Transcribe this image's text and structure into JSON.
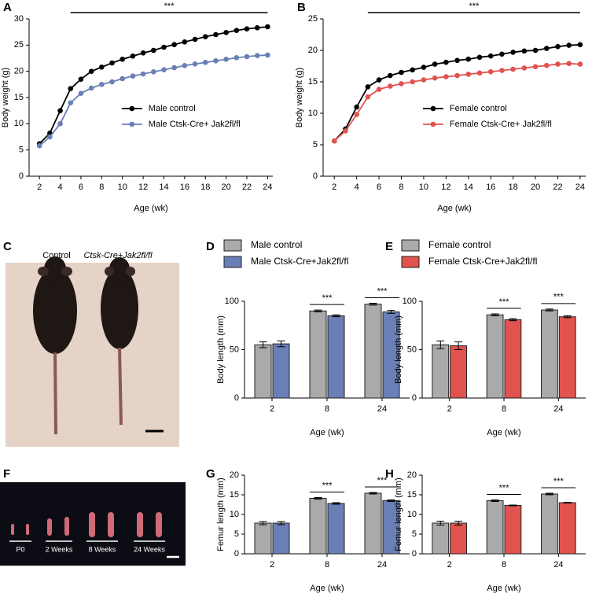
{
  "chart_data": [
    {
      "panel": "A",
      "type": "line",
      "xlabel": "Age (wk)",
      "ylabel": "Body weight (g)",
      "x": [
        2,
        3,
        4,
        5,
        6,
        7,
        8,
        9,
        10,
        11,
        12,
        13,
        14,
        15,
        16,
        17,
        18,
        19,
        20,
        21,
        22,
        23,
        24
      ],
      "series": [
        {
          "name": "Male control",
          "color": "#000000",
          "values": [
            6.2,
            8.2,
            12.5,
            16.7,
            18.5,
            20.0,
            20.8,
            21.6,
            22.3,
            22.9,
            23.5,
            24.0,
            24.6,
            25.1,
            25.6,
            26.1,
            26.6,
            27.0,
            27.4,
            27.8,
            28.1,
            28.3,
            28.5
          ]
        },
        {
          "name": "Male Ctsk-Cre+ Jak2fl/fl",
          "color": "#6a7fb5",
          "values": [
            5.8,
            7.5,
            10.0,
            14.0,
            15.8,
            16.8,
            17.5,
            18.0,
            18.6,
            19.1,
            19.5,
            19.9,
            20.3,
            20.7,
            21.1,
            21.4,
            21.7,
            22.0,
            22.3,
            22.6,
            22.8,
            23.0,
            23.1
          ]
        }
      ],
      "xlim": [
        1,
        24.5
      ],
      "xticks": [
        2,
        4,
        6,
        8,
        10,
        12,
        14,
        16,
        18,
        20,
        22,
        24
      ],
      "ylim": [
        0,
        30
      ],
      "yticks": [
        0,
        5,
        10,
        15,
        20,
        25,
        30
      ],
      "legend": "lower right",
      "annotations": [
        {
          "text": "***",
          "x": [
            5,
            24
          ]
        }
      ]
    },
    {
      "panel": "B",
      "type": "line",
      "xlabel": "Age (wk)",
      "ylabel": "Body weight (g)",
      "x": [
        2,
        3,
        4,
        5,
        6,
        7,
        8,
        9,
        10,
        11,
        12,
        13,
        14,
        15,
        16,
        17,
        18,
        19,
        20,
        21,
        22,
        23,
        24
      ],
      "series": [
        {
          "name": "Female control",
          "color": "#000000",
          "values": [
            5.6,
            7.5,
            11.0,
            14.2,
            15.3,
            16.0,
            16.5,
            16.9,
            17.3,
            17.8,
            18.1,
            18.4,
            18.6,
            18.9,
            19.1,
            19.4,
            19.7,
            19.9,
            20.0,
            20.3,
            20.6,
            20.8,
            20.9
          ]
        },
        {
          "name": "Female Ctsk-Cre+ Jak2fl/fl",
          "color": "#e0534f",
          "values": [
            5.6,
            7.2,
            9.8,
            12.6,
            13.8,
            14.3,
            14.7,
            15.0,
            15.3,
            15.6,
            15.8,
            16.0,
            16.2,
            16.4,
            16.6,
            16.8,
            17.0,
            17.2,
            17.4,
            17.6,
            17.8,
            17.9,
            17.8
          ]
        }
      ],
      "xlim": [
        1,
        24.5
      ],
      "xticks": [
        2,
        4,
        6,
        8,
        10,
        12,
        14,
        16,
        18,
        20,
        22,
        24
      ],
      "ylim": [
        0,
        25
      ],
      "yticks": [
        0,
        5,
        10,
        15,
        20,
        25
      ],
      "legend": "lower right",
      "annotations": [
        {
          "text": "***",
          "x": [
            5,
            24
          ]
        }
      ]
    },
    {
      "panel": "D",
      "type": "bar",
      "xlabel": "Age (wk)",
      "ylabel": "Body length (mm)",
      "categories": [
        "2",
        "8",
        "24"
      ],
      "series": [
        {
          "name": "Male control",
          "color": "#aaaaaa",
          "values": [
            55,
            90,
            97
          ],
          "errors": [
            3,
            1,
            1
          ]
        },
        {
          "name": "Male Ctsk-Cre+Jak2fl/fl",
          "color": "#6a7fb5",
          "values": [
            56,
            85,
            89
          ],
          "errors": [
            3,
            1,
            1.5
          ]
        }
      ],
      "ylim": [
        0,
        100
      ],
      "yticks": [
        0,
        50,
        100
      ],
      "legend": "top",
      "annotations": [
        {
          "text": "***",
          "category": 1
        },
        {
          "text": "***",
          "category": 2
        }
      ]
    },
    {
      "panel": "E",
      "type": "bar",
      "xlabel": "Age (wk)",
      "ylabel": "Body length (mm)",
      "categories": [
        "2",
        "8",
        "24"
      ],
      "series": [
        {
          "name": "Female control",
          "color": "#aaaaaa",
          "values": [
            55,
            86,
            91
          ],
          "errors": [
            4,
            1,
            1
          ]
        },
        {
          "name": "Female Ctsk-Cre+Jak2fl/fl",
          "color": "#e0534f",
          "values": [
            54,
            81,
            84
          ],
          "errors": [
            4,
            1,
            1
          ]
        }
      ],
      "ylim": [
        0,
        100
      ],
      "yticks": [
        0,
        50,
        100
      ],
      "legend": "top",
      "annotations": [
        {
          "text": "***",
          "category": 1
        },
        {
          "text": "***",
          "category": 2
        }
      ]
    },
    {
      "panel": "G",
      "type": "bar",
      "xlabel": "Age (wk)",
      "ylabel": "Femur length (mm)",
      "categories": [
        "2",
        "8",
        "24"
      ],
      "series": [
        {
          "color": "#aaaaaa",
          "values": [
            7.8,
            14.1,
            15.4
          ],
          "errors": [
            0.4,
            0.2,
            0.2
          ]
        },
        {
          "color": "#6a7fb5",
          "values": [
            7.8,
            12.8,
            13.5
          ],
          "errors": [
            0.4,
            0.2,
            0.2
          ]
        }
      ],
      "ylim": [
        0,
        20
      ],
      "yticks": [
        0,
        5,
        10,
        15,
        20
      ],
      "annotations": [
        {
          "text": "***",
          "category": 1
        },
        {
          "text": "***",
          "category": 2
        }
      ]
    },
    {
      "panel": "H",
      "type": "bar",
      "xlabel": "Age (wk)",
      "ylabel": "Femur length (mm)",
      "categories": [
        "2",
        "8",
        "24"
      ],
      "series": [
        {
          "color": "#aaaaaa",
          "values": [
            7.8,
            13.5,
            15.2
          ],
          "errors": [
            0.5,
            0.2,
            0.2
          ]
        },
        {
          "color": "#e0534f",
          "values": [
            7.8,
            12.3,
            13.0
          ],
          "errors": [
            0.5,
            0.1,
            0.1
          ]
        }
      ],
      "ylim": [
        0,
        20
      ],
      "yticks": [
        0,
        5,
        10,
        15,
        20
      ],
      "annotations": [
        {
          "text": "***",
          "category": 1
        },
        {
          "text": "***",
          "category": 2
        }
      ]
    }
  ],
  "photos": [
    {
      "panel": "C",
      "labels": [
        "Control",
        "Ctsk-Cre+Jak2fl/fl"
      ]
    },
    {
      "panel": "F",
      "labels": [
        "P0",
        "2 Weeks",
        "8 Weeks",
        "24 Weeks"
      ]
    }
  ]
}
